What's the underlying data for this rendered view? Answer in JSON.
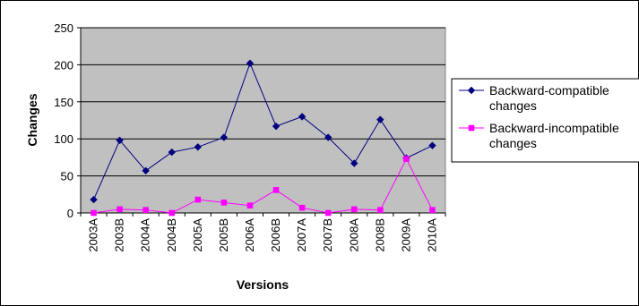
{
  "chart_data": {
    "type": "line",
    "title": "",
    "xlabel": "Versions",
    "ylabel": "Changes",
    "categories": [
      "2003A",
      "2003B",
      "2004A",
      "2004B",
      "2005A",
      "2005B",
      "2006A",
      "2006B",
      "2007A",
      "2007B",
      "2008A",
      "2008B",
      "2009A",
      "2010A"
    ],
    "ylim": [
      0,
      250
    ],
    "yticks": [
      0,
      50,
      100,
      150,
      200,
      250
    ],
    "grid": true,
    "plot_background": "#c0c0c0",
    "legend_position": "right",
    "series": [
      {
        "name": "Backward-compatible changes",
        "legend_lines": [
          "Backward-compatible",
          "changes"
        ],
        "color": "#000080",
        "marker": "diamond",
        "values": [
          18,
          98,
          57,
          82,
          89,
          102,
          202,
          117,
          130,
          102,
          67,
          126,
          74,
          91
        ]
      },
      {
        "name": "Backward-incompatible changes",
        "legend_lines": [
          "Backward-incompatible",
          "changes"
        ],
        "color": "#ff00ff",
        "marker": "square",
        "values": [
          0,
          5,
          4,
          0,
          18,
          14,
          10,
          31,
          7,
          0,
          5,
          4,
          73,
          4
        ]
      }
    ]
  }
}
